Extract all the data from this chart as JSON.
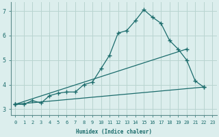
{
  "background_color": "#dceeed",
  "grid_color": "#b8d4d0",
  "line_color": "#1a6b6b",
  "xlabel": "Humidex (Indice chaleur)",
  "xlim": [
    -0.5,
    23.5
  ],
  "ylim": [
    2.75,
    7.35
  ],
  "yticks": [
    3,
    4,
    5,
    6,
    7
  ],
  "xticks": [
    0,
    1,
    2,
    3,
    4,
    5,
    6,
    7,
    8,
    9,
    10,
    11,
    12,
    13,
    14,
    15,
    16,
    17,
    18,
    19,
    20,
    21,
    22,
    23
  ],
  "series1_x": [
    0,
    1,
    2,
    3,
    4,
    5,
    6,
    7,
    8,
    9,
    10,
    11,
    12,
    13,
    14,
    15,
    16,
    17,
    18,
    19,
    20,
    21,
    22
  ],
  "series1_y": [
    3.2,
    3.2,
    3.35,
    3.25,
    3.55,
    3.65,
    3.7,
    3.7,
    4.0,
    4.1,
    4.65,
    5.2,
    6.1,
    6.2,
    6.6,
    7.05,
    6.75,
    6.5,
    5.8,
    5.45,
    5.0,
    4.15,
    3.9
  ],
  "series2_x": [
    0,
    22
  ],
  "series2_y": [
    3.2,
    3.9
  ],
  "series3_x": [
    0,
    20
  ],
  "series3_y": [
    3.2,
    5.45
  ]
}
